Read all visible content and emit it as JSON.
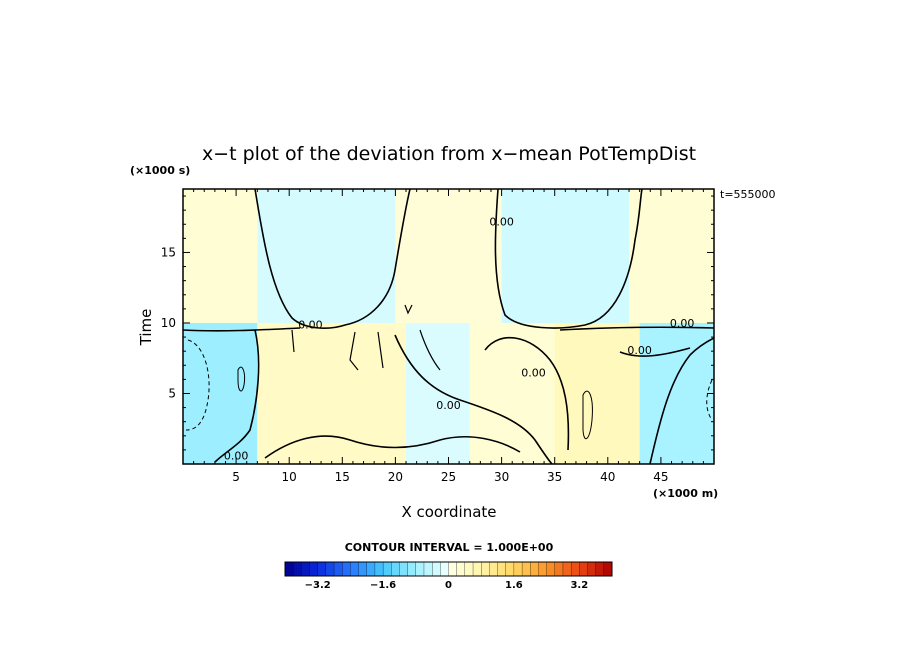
{
  "chart_data": {
    "type": "heatmap",
    "title": "x−t plot of the deviation from x−mean PotTempDist",
    "xlabel": "X coordinate",
    "ylabel": "Time",
    "x_unit": "(×1000 m)",
    "y_unit": "(×1000 s)",
    "time_stamp": "t=555000",
    "contour_interval_text": "CONTOUR INTERVAL = 1.000E+00",
    "xlim": [
      0,
      50
    ],
    "ylim": [
      0,
      19.5
    ],
    "x_ticks": [
      "5",
      "10",
      "15",
      "20",
      "25",
      "30",
      "35",
      "40",
      "45"
    ],
    "y_ticks": [
      "5",
      "10",
      "15"
    ],
    "contour_labels": [
      {
        "text": "0.00",
        "x": 5,
        "y": 0.6
      },
      {
        "text": "0.00",
        "x": 12,
        "y": 9.9
      },
      {
        "text": "0.00",
        "x": 30,
        "y": 17.2
      },
      {
        "text": "0.00",
        "x": 25,
        "y": 4.2
      },
      {
        "text": "0.00",
        "x": 33,
        "y": 6.5
      },
      {
        "text": "0.00",
        "x": 43,
        "y": 8.1
      },
      {
        "text": "0.00",
        "x": 47,
        "y": 10
      }
    ],
    "colorbar": {
      "min": -4,
      "max": 4,
      "step": 0.2,
      "tick_labels": [
        "−3.2",
        "−1.6",
        "0",
        "1.6",
        "3.2"
      ],
      "tick_values": [
        -3.2,
        -1.6,
        0,
        1.6,
        3.2
      ]
    },
    "field_regions": [
      {
        "description": "upper band (t>10) x 0–7",
        "x": [
          0,
          7
        ],
        "t": [
          10,
          19.5
        ],
        "value": 0.5
      },
      {
        "description": "upper band x 7–20",
        "x": [
          7,
          20
        ],
        "t": [
          10,
          19.5
        ],
        "value": -0.5
      },
      {
        "description": "upper band x 20–30",
        "x": [
          20,
          30
        ],
        "t": [
          10,
          19.5
        ],
        "value": 0.4
      },
      {
        "description": "upper band x 30–42",
        "x": [
          30,
          42
        ],
        "t": [
          10,
          19.5
        ],
        "value": -0.6
      },
      {
        "description": "upper band x 42–50",
        "x": [
          42,
          50
        ],
        "t": [
          10,
          19.5
        ],
        "value": 0.5
      },
      {
        "description": "lower-left cold pool",
        "x": [
          0,
          7
        ],
        "t": [
          0,
          10
        ],
        "value": -1.5
      },
      {
        "description": "lower warm band",
        "x": [
          7,
          21
        ],
        "t": [
          0,
          10
        ],
        "value": 0.8
      },
      {
        "description": "lower x 21–27",
        "x": [
          21,
          27
        ],
        "t": [
          0,
          10
        ],
        "value": -0.4
      },
      {
        "description": "lower x 27–35",
        "x": [
          27,
          35
        ],
        "t": [
          0,
          10
        ],
        "value": 0.5
      },
      {
        "description": "lower warm x 35–43",
        "x": [
          35,
          43
        ],
        "t": [
          0,
          10
        ],
        "value": 1.0
      },
      {
        "description": "lower-right cold pool",
        "x": [
          43,
          50
        ],
        "t": [
          0,
          10
        ],
        "value": -1.3
      }
    ]
  }
}
